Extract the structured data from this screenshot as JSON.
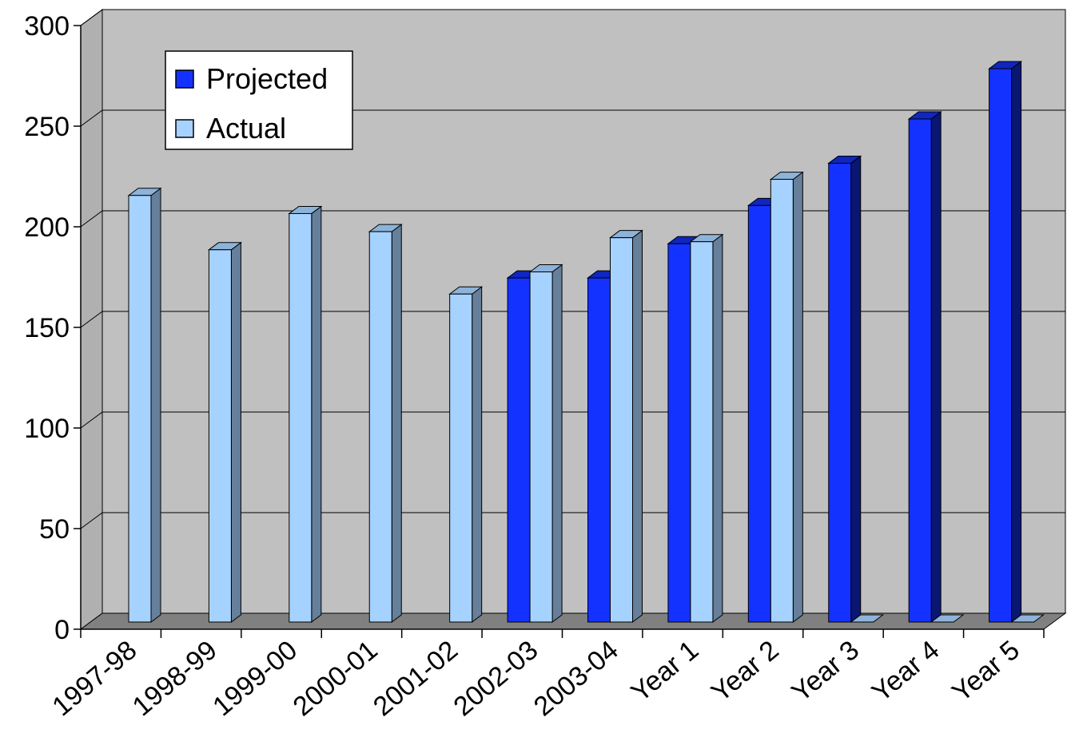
{
  "chart_data": {
    "type": "bar",
    "categories": [
      "1997-98",
      "1998-99",
      "1999-00",
      "2000-01",
      "2001-02",
      "2002-03",
      "2003-04",
      "Year 1",
      "Year 2",
      "Year 3",
      "Year 4",
      "Year 5"
    ],
    "series": [
      {
        "name": "Projected",
        "values": [
          null,
          null,
          null,
          null,
          null,
          171,
          171,
          188,
          207,
          228,
          250,
          275
        ],
        "color": "#1432ff"
      },
      {
        "name": "Actual",
        "values": [
          212,
          185,
          203,
          194,
          163,
          174,
          191,
          189,
          220,
          0,
          0,
          0
        ],
        "color": "#a6d2ff"
      }
    ],
    "yticks": [
      0,
      50,
      100,
      150,
      200,
      250,
      300
    ],
    "ylim": [
      0,
      300
    ],
    "title": "",
    "xlabel": "",
    "ylabel": "",
    "grid": true,
    "legend_position": "top-left",
    "style": "3d-clustered-column",
    "wall_color": "#c0c0c0",
    "floor_color": "#808080"
  }
}
